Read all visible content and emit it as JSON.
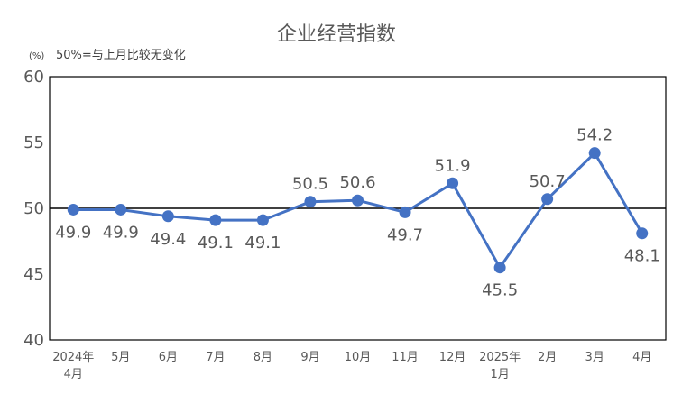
{
  "chart_data": {
    "type": "line",
    "title": "企业经营指数",
    "unit_label": "(%)",
    "note": "50%=与上月比较无变化",
    "categories": [
      [
        "2024年",
        "4月"
      ],
      [
        "5月"
      ],
      [
        "6月"
      ],
      [
        "7月"
      ],
      [
        "8月"
      ],
      [
        "9月"
      ],
      [
        "10月"
      ],
      [
        "11月"
      ],
      [
        "12月"
      ],
      [
        "2025年",
        "1月"
      ],
      [
        "2月"
      ],
      [
        "3月"
      ],
      [
        "4月"
      ]
    ],
    "series": [
      {
        "values": [
          49.9,
          49.9,
          49.4,
          49.1,
          49.1,
          50.5,
          50.6,
          49.7,
          51.9,
          45.5,
          50.7,
          54.2,
          48.1
        ]
      }
    ],
    "data_labels": [
      "49.9",
      "49.9",
      "49.4",
      "49.1",
      "49.1",
      "50.5",
      "50.6",
      "49.7",
      "51.9",
      "45.5",
      "50.7",
      "54.2",
      "48.1"
    ],
    "ylim": [
      40,
      60
    ],
    "yticks": [
      40,
      45,
      50,
      55,
      60
    ],
    "reference_line": 50,
    "line_color": "#4472C4",
    "grid": false,
    "legend": "none"
  }
}
